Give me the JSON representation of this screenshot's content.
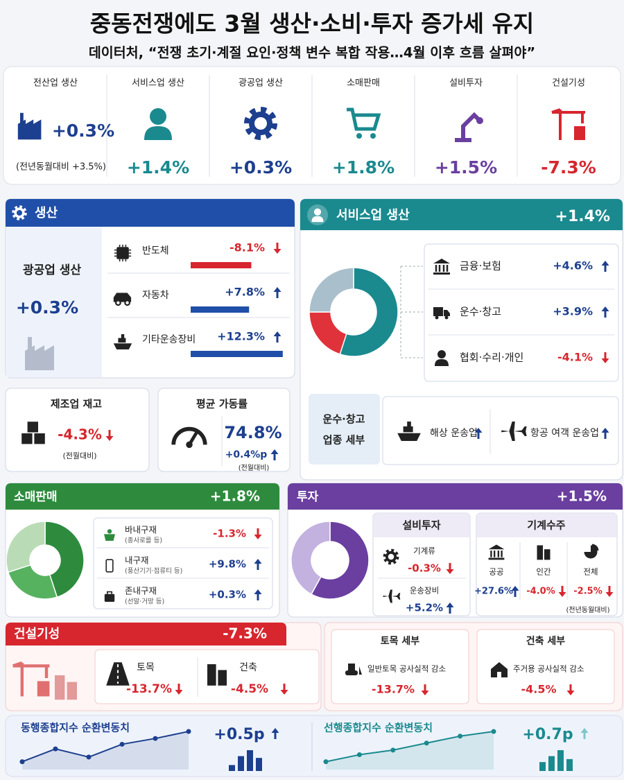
{
  "header": {
    "title": "중동전쟁에도 3월 생산·소비·투자 증가세 유지",
    "subtitle": "데이터처, “전쟁 초기·계절 요인·정책 변수 복합 작용…4월 이후 흐름 살펴야”"
  },
  "summary": [
    {
      "label": "전산업 생산",
      "value": "+0.3%",
      "note": "(전년동월대비 +3.5%)"
    },
    {
      "label": "서비스업 생산",
      "value": "+1.4%"
    },
    {
      "label": "광공업 생산",
      "value": "+0.3%"
    },
    {
      "label": "소매판매",
      "value": "+1.8%"
    },
    {
      "label": "설비투자",
      "value": "+1.5%"
    },
    {
      "label": "건설기성",
      "value": "-7.3%"
    }
  ],
  "production": {
    "title": "생산",
    "main_label": "광공업 생산",
    "main_value": "+0.3%",
    "items": [
      {
        "label": "반도체",
        "value": -8.1,
        "value_label": "-8.1%"
      },
      {
        "label": "자동차",
        "value": 7.8,
        "value_label": "+7.8%"
      },
      {
        "label": "기타운송장비",
        "value": 12.3,
        "value_label": "+12.3%"
      }
    ],
    "inventory": {
      "title": "제조업 재고",
      "value": "-4.3%",
      "note": "(전월대비)"
    },
    "utilization": {
      "title": "평균 가동률",
      "value": "74.8%",
      "change": "+0.4%p",
      "note": "(전월대비)"
    }
  },
  "services": {
    "title": "서비스업 생산",
    "value": "+1.4%",
    "donut": {
      "values": [
        55,
        20,
        25
      ],
      "colors": [
        "#1a8a8f",
        "#e0323a",
        "#a9bfcc"
      ]
    },
    "items": [
      {
        "label": "금융·보험",
        "value": "+4.6%"
      },
      {
        "label": "운수·창고",
        "value": "+3.9%"
      },
      {
        "label": "협회·수리·개인",
        "value": "-4.1%"
      }
    ],
    "detail": {
      "label_lines": [
        "운수·창고",
        "업종 세부"
      ],
      "items": [
        "해상 운송업",
        "항공 여객 운송업"
      ]
    }
  },
  "retail": {
    "title": "소매판매",
    "value": "+1.8%",
    "donut": {
      "values": [
        45,
        25,
        30
      ],
      "colors": [
        "#2e8b3e",
        "#57b260",
        "#b9dcb6"
      ]
    },
    "items": [
      {
        "label": "바내구재",
        "sub": "(종사로를 등)",
        "value": "-1.3%"
      },
      {
        "label": "내구재",
        "sub": "(풍산기기·점류티 등)",
        "value": "+9.8%"
      },
      {
        "label": "존내구재",
        "sub": "(선말·거망 등)",
        "value": "+0.3%"
      }
    ]
  },
  "investment": {
    "title": "투자",
    "value": "+1.5%",
    "donut": {
      "values": [
        58,
        42
      ],
      "colors": [
        "#6a3fa0",
        "#c3b1e0"
      ]
    },
    "equipment": {
      "title": "설비투자",
      "items": [
        {
          "label": "기계류",
          "value": "-0.3%"
        },
        {
          "label": "운송장비",
          "value": "+5.2%"
        }
      ]
    },
    "orders": {
      "title": "기계수주",
      "items": [
        {
          "label": "공공",
          "value": "+27.6%"
        },
        {
          "label": "인간",
          "value": "-4.0%"
        },
        {
          "label": "전체",
          "value": "-2.5%"
        }
      ],
      "note": "(전년동월대비)"
    }
  },
  "construction": {
    "title": "건설기성",
    "value": "-7.3%",
    "items": [
      {
        "label": "토목",
        "value": "-13.7%"
      },
      {
        "label": "건축",
        "value": "-4.5%"
      }
    ],
    "details": [
      {
        "title": "토목 세부",
        "label": "일반토목 공사실적 감소",
        "value": "-13.7%"
      },
      {
        "title": "건축 세부",
        "label": "주거용 공사실적 감소",
        "value": "-4.5%"
      }
    ]
  },
  "indices": [
    {
      "title": "동행종합지수 순환변동치",
      "value": "+0.5p",
      "line": [
        1,
        3.2,
        1.8,
        4,
        5,
        6.2
      ],
      "bars": [
        1,
        2.5,
        3.5,
        2.2
      ]
    },
    {
      "title": "선행종합지수 순환변동치",
      "value": "+0.7p",
      "line": [
        1,
        2.2,
        3,
        4.2,
        5.4,
        6.2
      ],
      "bars": [
        1.5,
        2.5,
        3.5,
        2
      ]
    }
  ]
}
